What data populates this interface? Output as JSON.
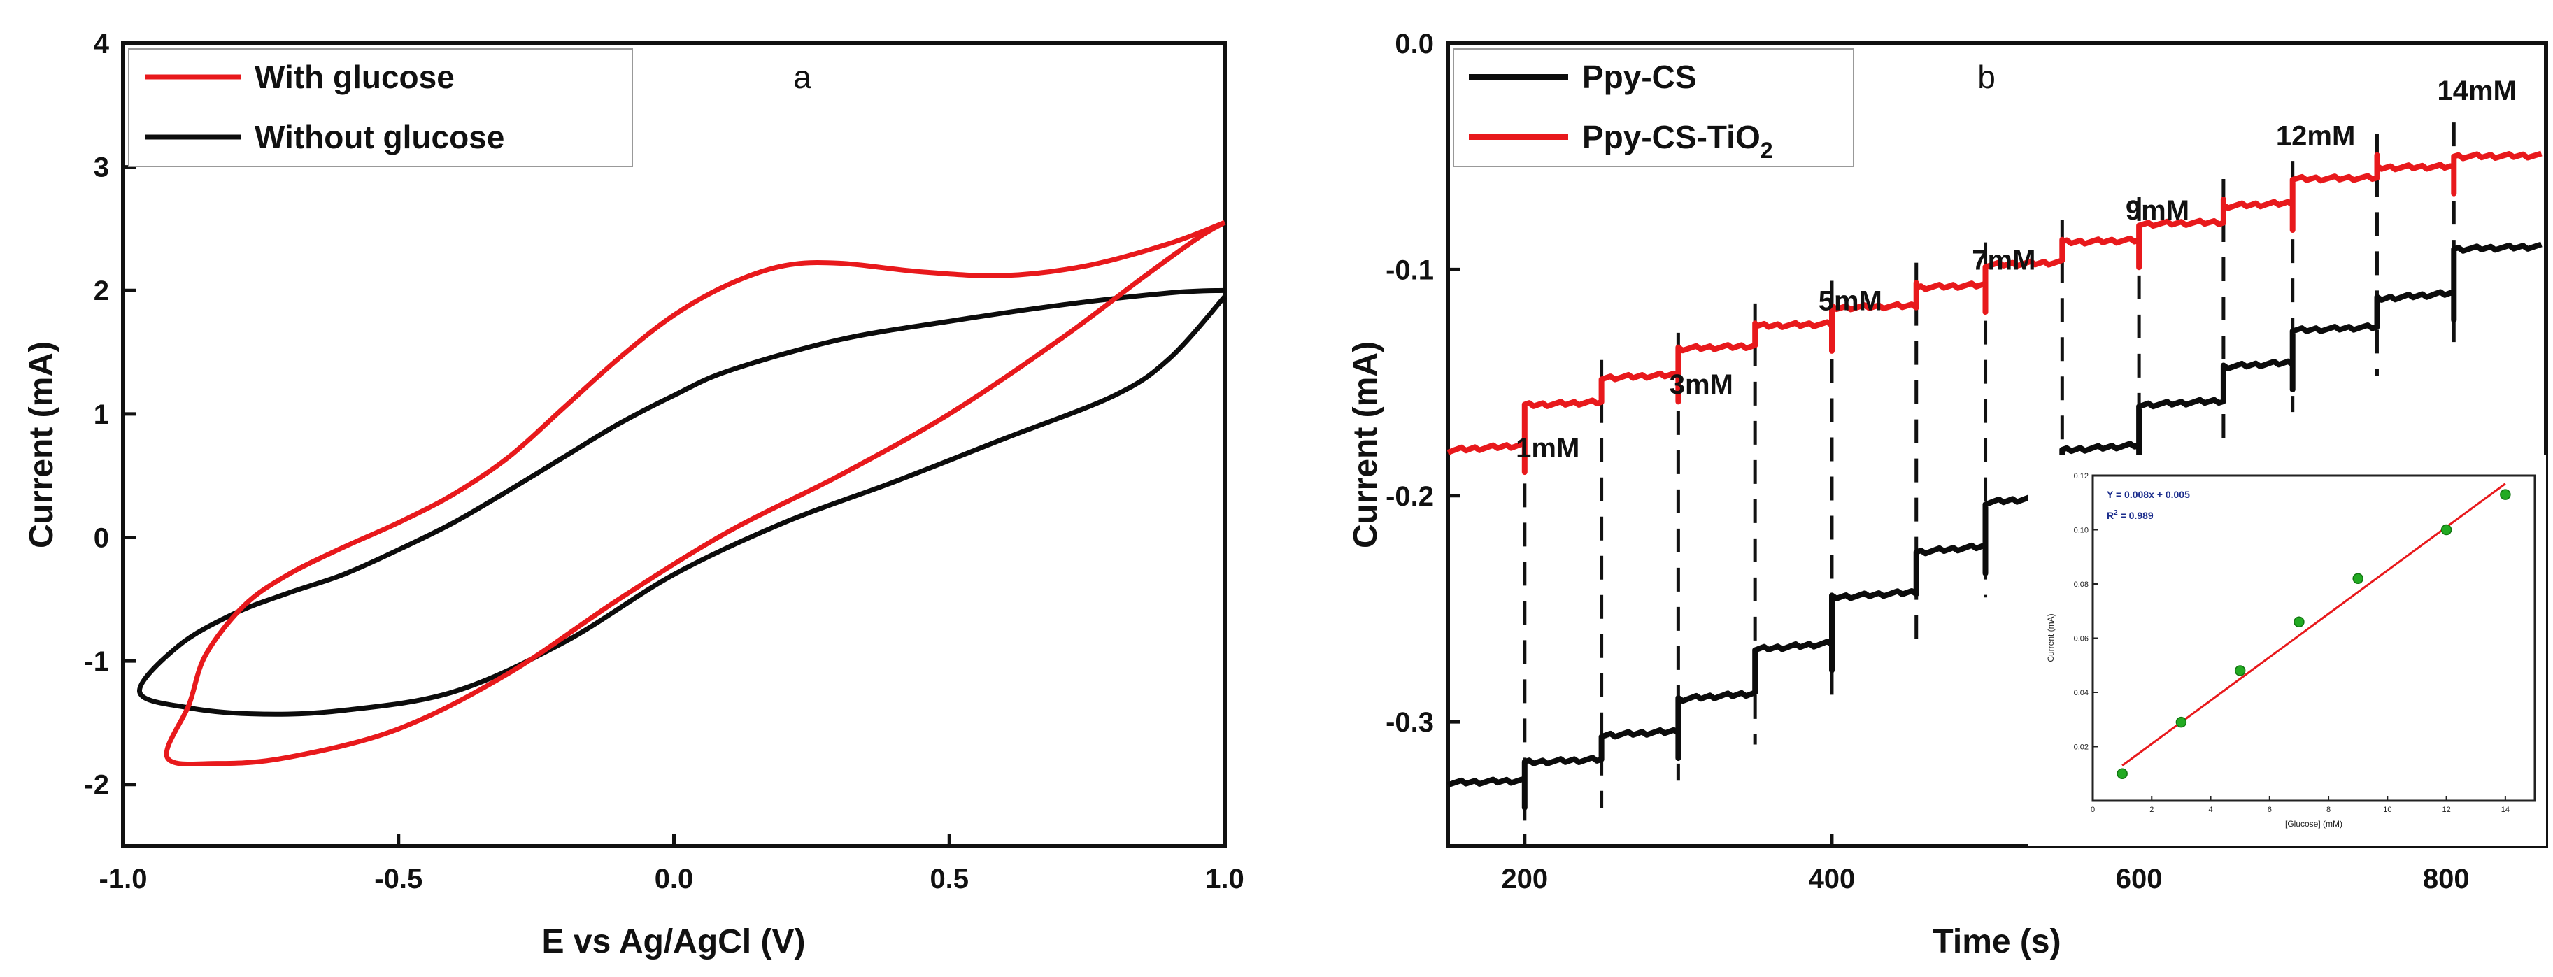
{
  "colors": {
    "red": "#e8191c",
    "black": "#0c0c0c",
    "inset_point": "#22aa22",
    "inset_fit": "#e8191c",
    "inset_text": "#1a2c8c"
  },
  "chart_data": [
    {
      "type": "line",
      "panel_label": "a",
      "title": "",
      "xlabel": "E vs Ag/AgCl (V)",
      "ylabel": "Current (mA)",
      "xlim": [
        -1.0,
        1.0
      ],
      "ylim": [
        -2.5,
        4.0
      ],
      "xticks": [
        "-1.0",
        "-0.5",
        "0.0",
        "0.5",
        "1.0"
      ],
      "yticks": [
        "-2",
        "-1",
        "0",
        "1",
        "2",
        "3",
        "4"
      ],
      "legend_position": "top-left",
      "series": [
        {
          "name": "With glucose",
          "color": "#e8191c",
          "points": [
            [
              1.0,
              2.55
            ],
            [
              0.9,
              2.38
            ],
            [
              0.75,
              2.2
            ],
            [
              0.6,
              2.12
            ],
            [
              0.45,
              2.15
            ],
            [
              0.3,
              2.22
            ],
            [
              0.2,
              2.2
            ],
            [
              0.1,
              2.05
            ],
            [
              0.0,
              1.8
            ],
            [
              -0.1,
              1.45
            ],
            [
              -0.2,
              1.05
            ],
            [
              -0.3,
              0.65
            ],
            [
              -0.4,
              0.35
            ],
            [
              -0.5,
              0.12
            ],
            [
              -0.6,
              -0.08
            ],
            [
              -0.7,
              -0.3
            ],
            [
              -0.78,
              -0.55
            ],
            [
              -0.85,
              -0.95
            ],
            [
              -0.88,
              -1.35
            ],
            [
              -0.92,
              -1.78
            ],
            [
              -0.83,
              -1.83
            ],
            [
              -0.7,
              -1.78
            ],
            [
              -0.5,
              -1.55
            ],
            [
              -0.3,
              -1.1
            ],
            [
              -0.1,
              -0.5
            ],
            [
              0.1,
              0.05
            ],
            [
              0.3,
              0.5
            ],
            [
              0.5,
              1.0
            ],
            [
              0.7,
              1.6
            ],
            [
              0.85,
              2.1
            ],
            [
              0.95,
              2.42
            ],
            [
              1.0,
              2.55
            ]
          ]
        },
        {
          "name": "Without glucose",
          "color": "#0c0c0c",
          "points": [
            [
              1.0,
              2.0
            ],
            [
              0.9,
              1.98
            ],
            [
              0.7,
              1.88
            ],
            [
              0.5,
              1.75
            ],
            [
              0.3,
              1.6
            ],
            [
              0.1,
              1.35
            ],
            [
              0.0,
              1.15
            ],
            [
              -0.1,
              0.92
            ],
            [
              -0.2,
              0.65
            ],
            [
              -0.3,
              0.38
            ],
            [
              -0.4,
              0.12
            ],
            [
              -0.5,
              -0.1
            ],
            [
              -0.6,
              -0.3
            ],
            [
              -0.7,
              -0.45
            ],
            [
              -0.8,
              -0.62
            ],
            [
              -0.9,
              -0.88
            ],
            [
              -0.97,
              -1.25
            ],
            [
              -0.88,
              -1.38
            ],
            [
              -0.75,
              -1.43
            ],
            [
              -0.6,
              -1.4
            ],
            [
              -0.4,
              -1.25
            ],
            [
              -0.2,
              -0.85
            ],
            [
              0.0,
              -0.3
            ],
            [
              0.2,
              0.12
            ],
            [
              0.4,
              0.45
            ],
            [
              0.6,
              0.8
            ],
            [
              0.8,
              1.15
            ],
            [
              0.9,
              1.45
            ],
            [
              1.0,
              1.95
            ]
          ]
        }
      ]
    },
    {
      "type": "line",
      "panel_label": "b",
      "title": "",
      "xlabel": "Time (s)",
      "ylabel": "Current (mA)",
      "xlim": [
        150,
        865
      ],
      "ylim": [
        -0.355,
        0.0
      ],
      "xticks": [
        "200",
        "400",
        "600",
        "800"
      ],
      "yticks": [
        "-0.3",
        "-0.2",
        "-0.1",
        "0.0"
      ],
      "legend_position": "top-left",
      "additions_time": [
        200,
        250,
        300,
        350,
        400,
        455,
        500,
        550,
        600,
        655,
        700,
        755,
        805
      ],
      "concentration_labels": [
        {
          "text": "1mM",
          "t": 215,
          "y": -0.183
        },
        {
          "text": "3mM",
          "t": 315,
          "y": -0.155
        },
        {
          "text": "5mM",
          "t": 412,
          "y": -0.118
        },
        {
          "text": "7mM",
          "t": 512,
          "y": -0.1
        },
        {
          "text": "9mM",
          "t": 612,
          "y": -0.078
        },
        {
          "text": "12mM",
          "t": 715,
          "y": -0.045
        },
        {
          "text": "14mM",
          "t": 820,
          "y": -0.025
        }
      ],
      "series": [
        {
          "name": "Ppy-CS",
          "color": "#0c0c0c",
          "levels": [
            -0.327,
            -0.318,
            -0.306,
            -0.29,
            -0.268,
            -0.245,
            -0.225,
            -0.203,
            -0.18,
            -0.16,
            -0.143,
            -0.127,
            -0.113,
            -0.091
          ],
          "end_slope": 0.00012
        },
        {
          "name": "Ppy-CS-TiO2",
          "name_parts": [
            "Ppy-CS-TiO",
            "2"
          ],
          "color": "#e8191c",
          "levels": [
            -0.18,
            -0.16,
            -0.148,
            -0.135,
            -0.125,
            -0.117,
            -0.108,
            -0.098,
            -0.088,
            -0.08,
            -0.072,
            -0.06,
            -0.055,
            -0.05
          ],
          "end_slope": 4e-05
        }
      ],
      "inset": {
        "type": "scatter",
        "xlabel": "[Glucose] (mM)",
        "ylabel": "Current (mA)",
        "xlim": [
          0,
          15
        ],
        "ylim": [
          0,
          0.12
        ],
        "xticks": [
          "0",
          "2",
          "4",
          "6",
          "8",
          "10",
          "12",
          "14"
        ],
        "yticks": [
          "0.02",
          "0.04",
          "0.06",
          "0.08",
          "0.10",
          "0.12"
        ],
        "equation": "Y = 0.008x + 0.005",
        "r2_parts": [
          "R",
          "2",
          " = 0.989"
        ],
        "fit": {
          "slope": 0.008,
          "intercept": 0.005
        },
        "points": [
          [
            1,
            0.01
          ],
          [
            3,
            0.029
          ],
          [
            5,
            0.048
          ],
          [
            7,
            0.066
          ],
          [
            9,
            0.082
          ],
          [
            12,
            0.1
          ],
          [
            14,
            0.113
          ]
        ]
      }
    }
  ]
}
